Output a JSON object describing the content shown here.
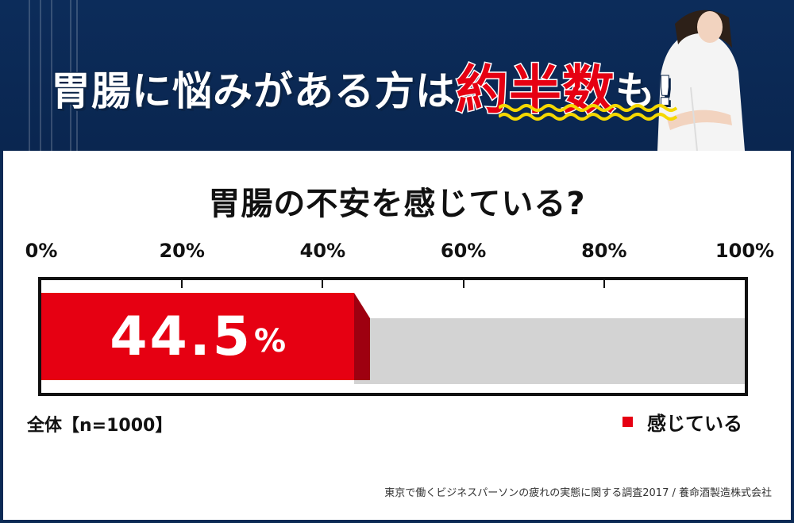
{
  "header": {
    "title_part1": "胃腸に悩みがある方は",
    "title_emphasis": "約半数",
    "title_part2": "も!"
  },
  "chart_data": {
    "type": "bar",
    "orientation": "horizontal-stacked",
    "title": "胃腸の不安を感じている?",
    "categories": [
      "全体【n=1000】"
    ],
    "series": [
      {
        "name": "感じている",
        "values": [
          44.5
        ],
        "color": "#e60012"
      }
    ],
    "remainder_color": "#d3d3d3",
    "xlim": [
      0,
      100
    ],
    "ticks": [
      "0%",
      "20%",
      "40%",
      "60%",
      "80%",
      "100%"
    ],
    "data_label": {
      "value": "44.5",
      "unit": "%"
    },
    "legend_position": "bottom-right"
  },
  "sample_label": "全体【n=1000】",
  "legend_label": "感じている",
  "source": "東京で働くビジネスパーソンの疲れの実態に関する調査2017 / 養命酒製造株式会社",
  "colors": {
    "navy": "#0b2a55",
    "accent_red": "#e60012",
    "zigzag_yellow": "#f5d800"
  }
}
